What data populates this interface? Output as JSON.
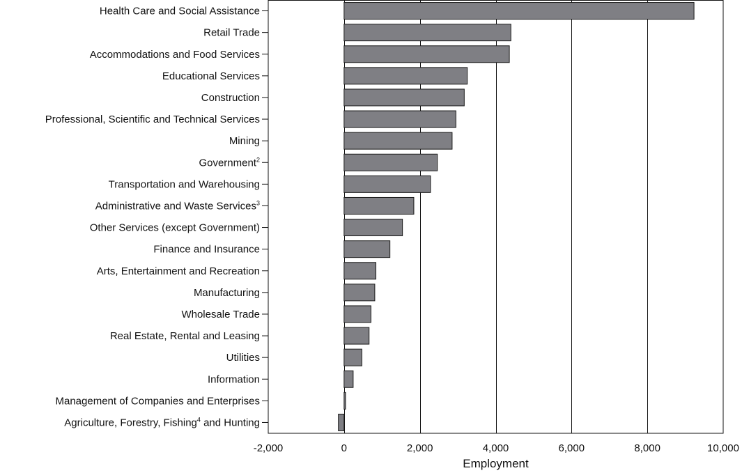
{
  "chart_data": {
    "type": "bar",
    "orientation": "horizontal",
    "categories": [
      "Health Care and Social Assistance",
      "Retail Trade",
      "Accommodations and Food Services",
      "Educational Services",
      "Construction",
      "Professional, Scientific and Technical Services",
      "Mining",
      "Government",
      "Transportation and Warehousing",
      "Administrative and Waste Services",
      "Other Services (except Government)",
      "Finance and Insurance",
      "Arts, Entertainment and Recreation",
      "Manufacturing",
      "Wholesale Trade",
      "Real Estate, Rental and Leasing",
      "Utilities",
      "Information",
      "Management of Companies and Enterprises",
      "Agriculture, Forestry, Fishing and Hunting"
    ],
    "category_footnotes": {
      "Government": "2",
      "Administrative and Waste Services": "3",
      "Agriculture, Forestry, Fishing and Hunting": "4"
    },
    "values": [
      9230,
      4400,
      4360,
      3250,
      3170,
      2950,
      2850,
      2460,
      2280,
      1840,
      1540,
      1210,
      840,
      810,
      710,
      660,
      470,
      240,
      40,
      -150
    ],
    "xlabel": "Employment",
    "ylabel": "",
    "xlim": [
      -2000,
      10000
    ],
    "xticks": [
      -2000,
      0,
      2000,
      4000,
      6000,
      8000,
      10000
    ],
    "xtick_labels": [
      "-2,000",
      "0",
      "2,000",
      "4,000",
      "6,000",
      "8,000",
      "10,000"
    ],
    "grid": "vertical",
    "bar_color": "#7f7f84",
    "bar_edge_color": "#1a1a1a"
  }
}
